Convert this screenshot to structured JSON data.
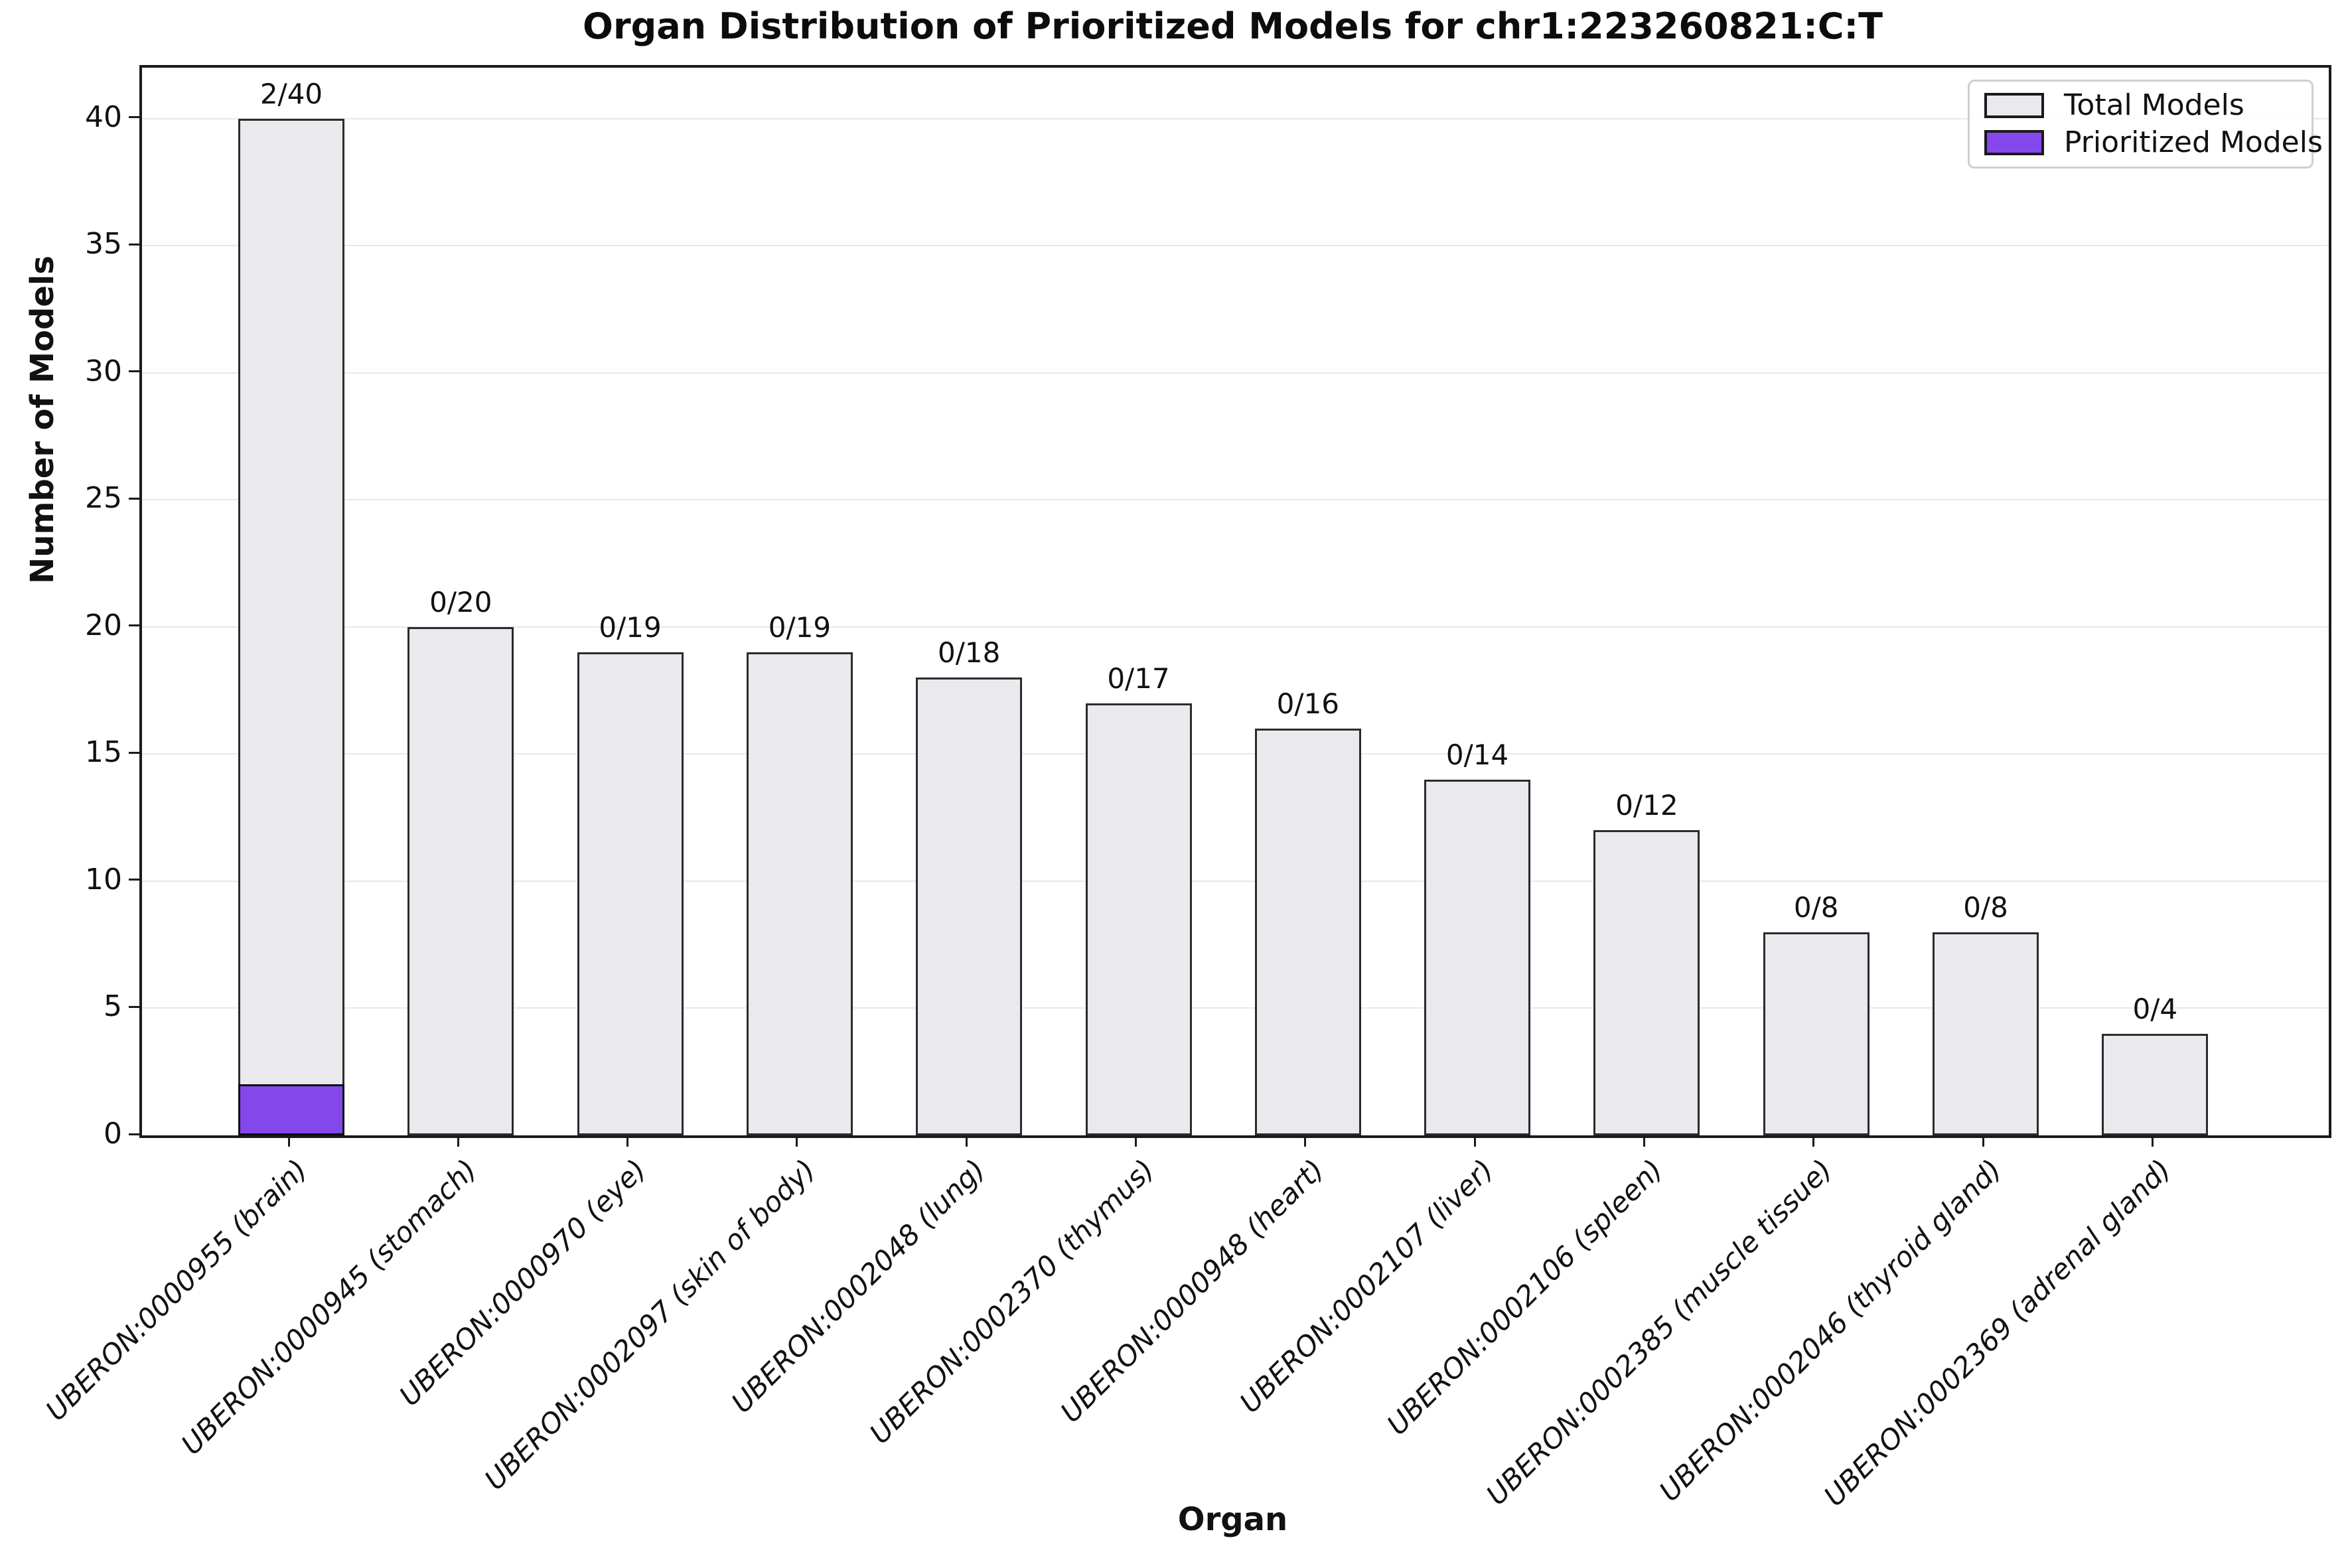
{
  "figure": {
    "title": "Organ Distribution of Prioritized Models for chr1:223260821:C:T",
    "xlabel": "Organ",
    "ylabel": "Number of Models",
    "legend": {
      "total_label": "Total Models",
      "prioritized_label": "Prioritized Models"
    },
    "colors": {
      "total_fill": "#e9e9ee",
      "total_edge": "#2b2b2b",
      "prioritized_fill": "#8447eb",
      "prioritized_edge": "#0d0d0d",
      "gridline": "#e8e8e8",
      "spine": "#1a1a1a",
      "background": "#ffffff",
      "text": "#111111",
      "legend_border": "#cfcfcf"
    }
  },
  "chart_data": {
    "type": "bar",
    "title": "Organ Distribution of Prioritized Models for chr1:223260821:C:T",
    "xlabel": "Organ",
    "ylabel": "Number of Models",
    "categories": [
      "UBERON:0000955 (brain)",
      "UBERON:0000945 (stomach)",
      "UBERON:0000970 (eye)",
      "UBERON:0002097 (skin of body)",
      "UBERON:0002048 (lung)",
      "UBERON:0002370 (thymus)",
      "UBERON:0000948 (heart)",
      "UBERON:0002107 (liver)",
      "UBERON:0002106 (spleen)",
      "UBERON:0002385 (muscle tissue)",
      "UBERON:0002046 (thyroid gland)",
      "UBERON:0002369 (adrenal gland)"
    ],
    "series": [
      {
        "name": "Total Models",
        "values": [
          40,
          20,
          19,
          19,
          18,
          17,
          16,
          14,
          12,
          8,
          8,
          4
        ]
      },
      {
        "name": "Prioritized Models",
        "values": [
          2,
          0,
          0,
          0,
          0,
          0,
          0,
          0,
          0,
          0,
          0,
          0
        ]
      }
    ],
    "bar_labels": [
      "2/40",
      "0/20",
      "0/19",
      "0/19",
      "0/18",
      "0/17",
      "0/16",
      "0/14",
      "0/12",
      "0/8",
      "0/8",
      "0/4"
    ],
    "yticks": [
      0,
      5,
      10,
      15,
      20,
      25,
      30,
      35,
      40
    ],
    "ylim": [
      0,
      42
    ],
    "grid": "horizontal",
    "legend_position": "upper right"
  }
}
